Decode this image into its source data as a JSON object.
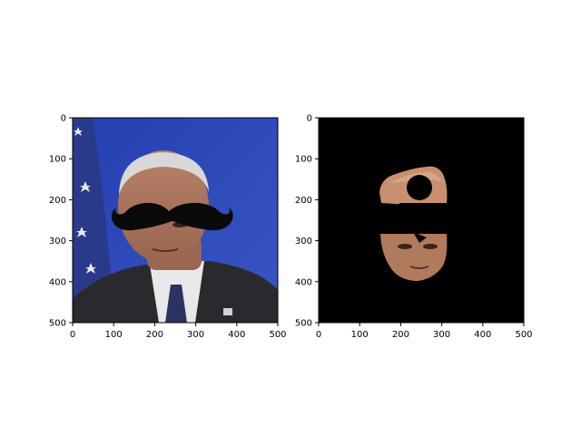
{
  "chart_data": [
    {
      "type": "image",
      "title": "",
      "xlabel": "",
      "ylabel": "",
      "xlim": [
        0,
        500
      ],
      "ylim": [
        500,
        0
      ],
      "xticks": [
        0,
        100,
        200,
        300,
        400,
        500
      ],
      "yticks": [
        0,
        100,
        200,
        300,
        400,
        500
      ],
      "content": "photo of man in suit in front of blue background and flag, black mustache overlay",
      "colors": {
        "background": "#2f47b8",
        "suit": "#2a2a2e",
        "skin": "#a87258",
        "mustache": "#0a0a0a"
      }
    },
    {
      "type": "image",
      "title": "",
      "xlabel": "",
      "ylabel": "",
      "xlim": [
        0,
        500
      ],
      "ylim": [
        500,
        0
      ],
      "xticks": [
        0,
        100,
        200,
        300,
        400,
        500
      ],
      "yticks": [
        0,
        100,
        200,
        300,
        400,
        500
      ],
      "content": "masked face region on black background with mustache cut out",
      "colors": {
        "background": "#000000",
        "skin": "#c08a6c"
      }
    }
  ]
}
